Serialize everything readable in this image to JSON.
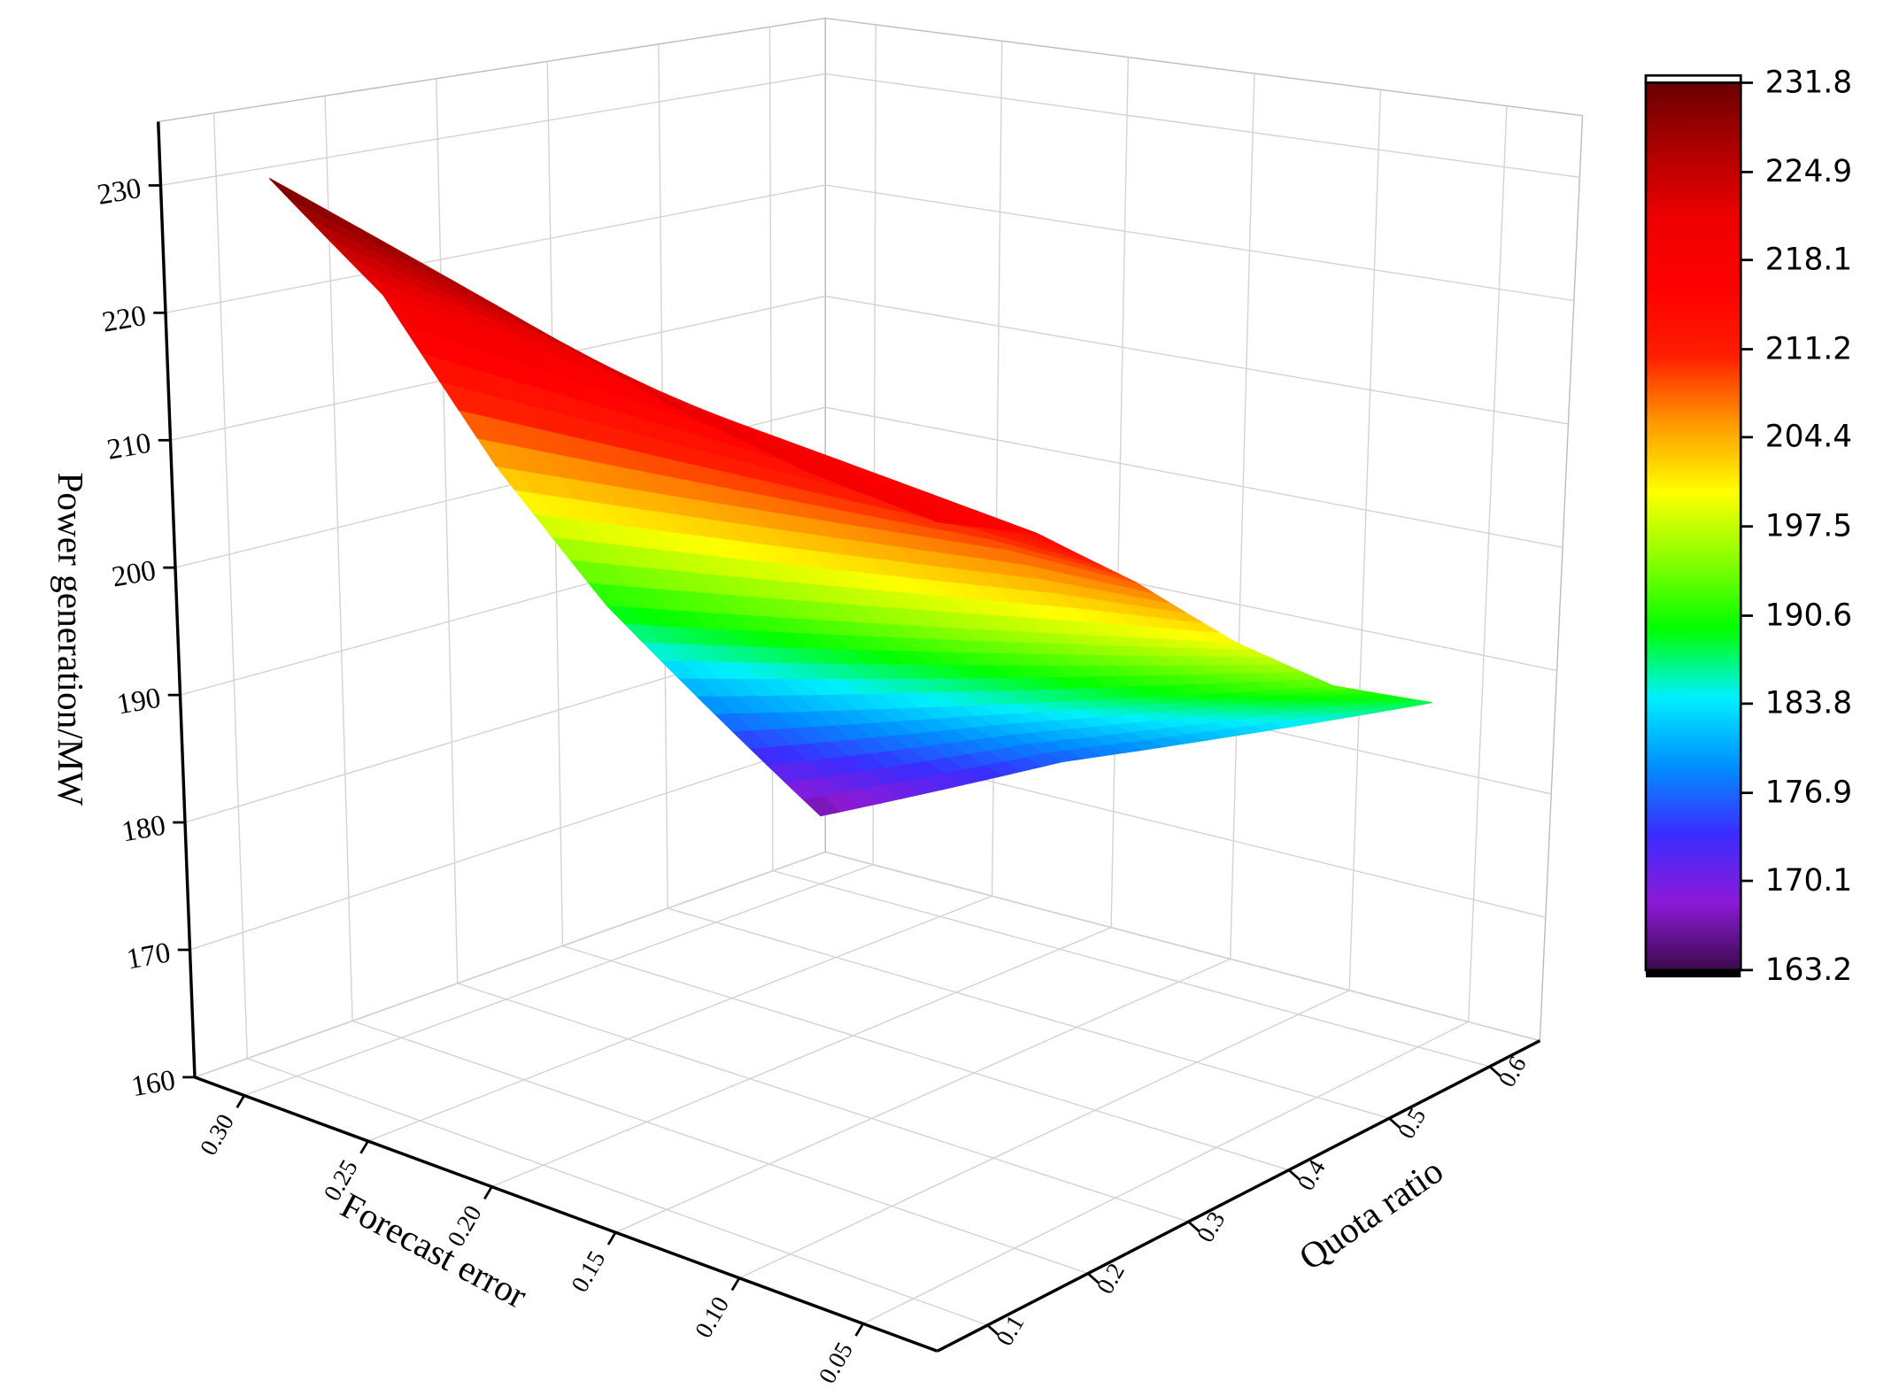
{
  "chart_data": {
    "type": "surface",
    "xlabel": "Forecast error",
    "ylabel": "Quota ratio",
    "zlabel": "Power generation/MW",
    "x": [
      0.05,
      0.1,
      0.15,
      0.2,
      0.25,
      0.3
    ],
    "y": [
      0.1,
      0.2,
      0.3,
      0.4,
      0.5,
      0.6
    ],
    "z": [
      [
        219,
        220,
        222,
        225,
        228,
        231
      ],
      [
        215,
        216,
        217,
        218,
        219,
        220
      ],
      [
        208,
        208,
        207,
        206,
        205,
        204
      ],
      [
        200,
        198,
        196,
        194,
        192,
        190
      ],
      [
        193,
        190,
        187,
        184,
        181,
        178
      ],
      [
        188,
        184,
        180,
        176,
        171,
        166
      ]
    ],
    "xlim": [
      0.02,
      0.32
    ],
    "ylim": [
      0.05,
      0.65
    ],
    "zlim": [
      160,
      235
    ],
    "xticks": [
      {
        "value": 0.05,
        "label": "0.05"
      },
      {
        "value": 0.1,
        "label": "0.10"
      },
      {
        "value": 0.15,
        "label": "0.15"
      },
      {
        "value": 0.2,
        "label": "0.20"
      },
      {
        "value": 0.25,
        "label": "0.25"
      },
      {
        "value": 0.3,
        "label": "0.30"
      }
    ],
    "yticks": [
      0.1,
      0.2,
      0.3,
      0.4,
      0.5,
      0.6
    ],
    "zticks": [
      160,
      170,
      180,
      190,
      200,
      210,
      220,
      230
    ],
    "grid": true,
    "colormap": [
      "#3c0a4a",
      "#8c1ad8",
      "#3a2cff",
      "#0090ff",
      "#00f0ff",
      "#00ff00",
      "#88ff00",
      "#ffff00",
      "#ff9a00",
      "#ff1e00",
      "#ff0000",
      "#ee0000",
      "#b00000",
      "#6a0000"
    ],
    "colorbar": {
      "lim": [
        163.2,
        231.8
      ],
      "ticks": [
        163.2,
        170.1,
        176.9,
        183.8,
        190.6,
        197.5,
        204.4,
        211.2,
        218.1,
        224.9,
        231.8
      ]
    }
  }
}
